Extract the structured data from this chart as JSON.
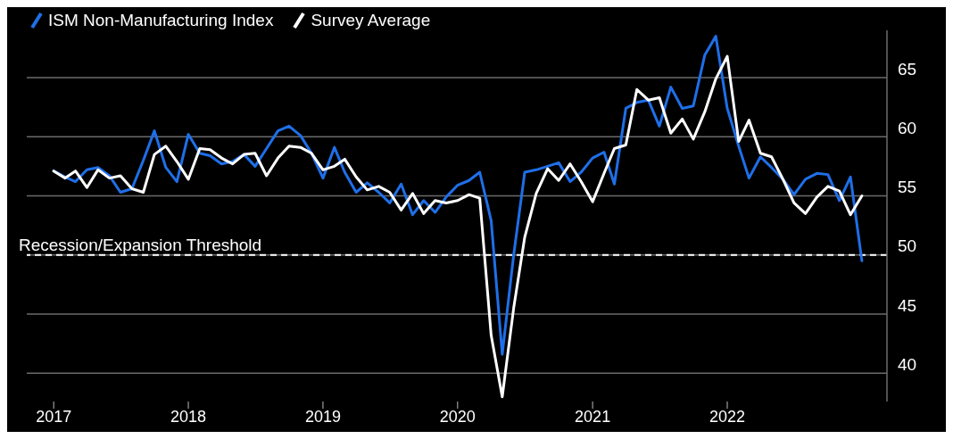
{
  "chart_data": {
    "type": "line",
    "x": [
      "2017-01",
      "2017-02",
      "2017-03",
      "2017-04",
      "2017-05",
      "2017-06",
      "2017-07",
      "2017-08",
      "2017-09",
      "2017-10",
      "2017-11",
      "2017-12",
      "2018-01",
      "2018-02",
      "2018-03",
      "2018-04",
      "2018-05",
      "2018-06",
      "2018-07",
      "2018-08",
      "2018-09",
      "2018-10",
      "2018-11",
      "2018-12",
      "2019-01",
      "2019-02",
      "2019-03",
      "2019-04",
      "2019-05",
      "2019-06",
      "2019-07",
      "2019-08",
      "2019-09",
      "2019-10",
      "2019-11",
      "2019-12",
      "2020-01",
      "2020-02",
      "2020-03",
      "2020-04",
      "2020-05",
      "2020-06",
      "2020-07",
      "2020-08",
      "2020-09",
      "2020-10",
      "2020-11",
      "2020-12",
      "2021-01",
      "2021-02",
      "2021-03",
      "2021-04",
      "2021-05",
      "2021-06",
      "2021-07",
      "2021-08",
      "2021-09",
      "2021-10",
      "2021-11",
      "2021-12",
      "2022-01",
      "2022-02",
      "2022-03",
      "2022-04",
      "2022-05",
      "2022-06",
      "2022-07",
      "2022-08",
      "2022-09",
      "2022-10",
      "2022-11",
      "2022-12",
      "2023-01"
    ],
    "series": [
      {
        "name": "ISM Non-Manufacturing Index",
        "color": "#1f6fe8",
        "values": [
          57.1,
          56.6,
          56.2,
          57.2,
          57.4,
          56.7,
          55.3,
          55.6,
          58.0,
          60.5,
          57.4,
          56.2,
          60.2,
          58.6,
          58.4,
          57.7,
          57.9,
          58.5,
          57.5,
          59.0,
          60.5,
          60.9,
          60.1,
          58.6,
          56.5,
          59.1,
          57.0,
          55.3,
          56.1,
          55.3,
          54.4,
          56.0,
          53.4,
          54.6,
          53.6,
          54.9,
          55.9,
          56.3,
          57.0,
          52.9,
          41.6,
          50.0,
          57.0,
          57.2,
          57.5,
          57.8,
          56.2,
          57.0,
          58.2,
          58.7,
          56.0,
          62.4,
          62.9,
          63.1,
          60.9,
          64.2,
          62.4,
          62.6,
          66.9,
          68.5,
          62.4,
          59.2,
          56.5,
          58.3,
          57.4,
          56.4,
          55.1,
          56.4,
          56.9,
          56.8,
          54.6,
          56.6,
          49.5
        ]
      },
      {
        "name": "Survey Average",
        "color": "#ffffff",
        "values": [
          57.1,
          56.5,
          57.1,
          55.7,
          57.2,
          56.5,
          56.7,
          55.6,
          55.3,
          58.5,
          59.2,
          57.9,
          56.4,
          59.0,
          58.9,
          58.2,
          57.7,
          58.5,
          58.6,
          56.7,
          58.2,
          59.2,
          59.1,
          58.6,
          57.2,
          57.5,
          58.1,
          56.6,
          55.5,
          55.8,
          55.3,
          53.8,
          55.2,
          53.5,
          54.6,
          54.4,
          54.6,
          55.1,
          54.8,
          43.2,
          38.0,
          45.5,
          51.5,
          55.2,
          57.3,
          56.3,
          57.7,
          56.2,
          54.5,
          56.9,
          59.0,
          59.3,
          64.0,
          63.1,
          63.3,
          60.3,
          61.5,
          59.8,
          62.1,
          64.9,
          66.8,
          59.6,
          61.4,
          58.6,
          58.3,
          56.4,
          54.4,
          53.5,
          54.9,
          55.8,
          55.4,
          53.4,
          55.0
        ]
      }
    ],
    "xlim": [
      "2016-10-20",
      "2023-03-10"
    ],
    "xticks": [
      "2017",
      "2018",
      "2019",
      "2020",
      "2021",
      "2022"
    ],
    "ylim": [
      37.6,
      69
    ],
    "yticks": [
      40,
      45,
      50,
      55,
      60,
      65
    ],
    "ref_lines": [
      {
        "axis": "y",
        "value": 50,
        "label": "Recession/Expansion Threshold",
        "color": "#ffffff",
        "line_style": "dashed"
      }
    ],
    "grid": "y",
    "legend": "top left",
    "marker": "none",
    "line_style": "solid"
  }
}
